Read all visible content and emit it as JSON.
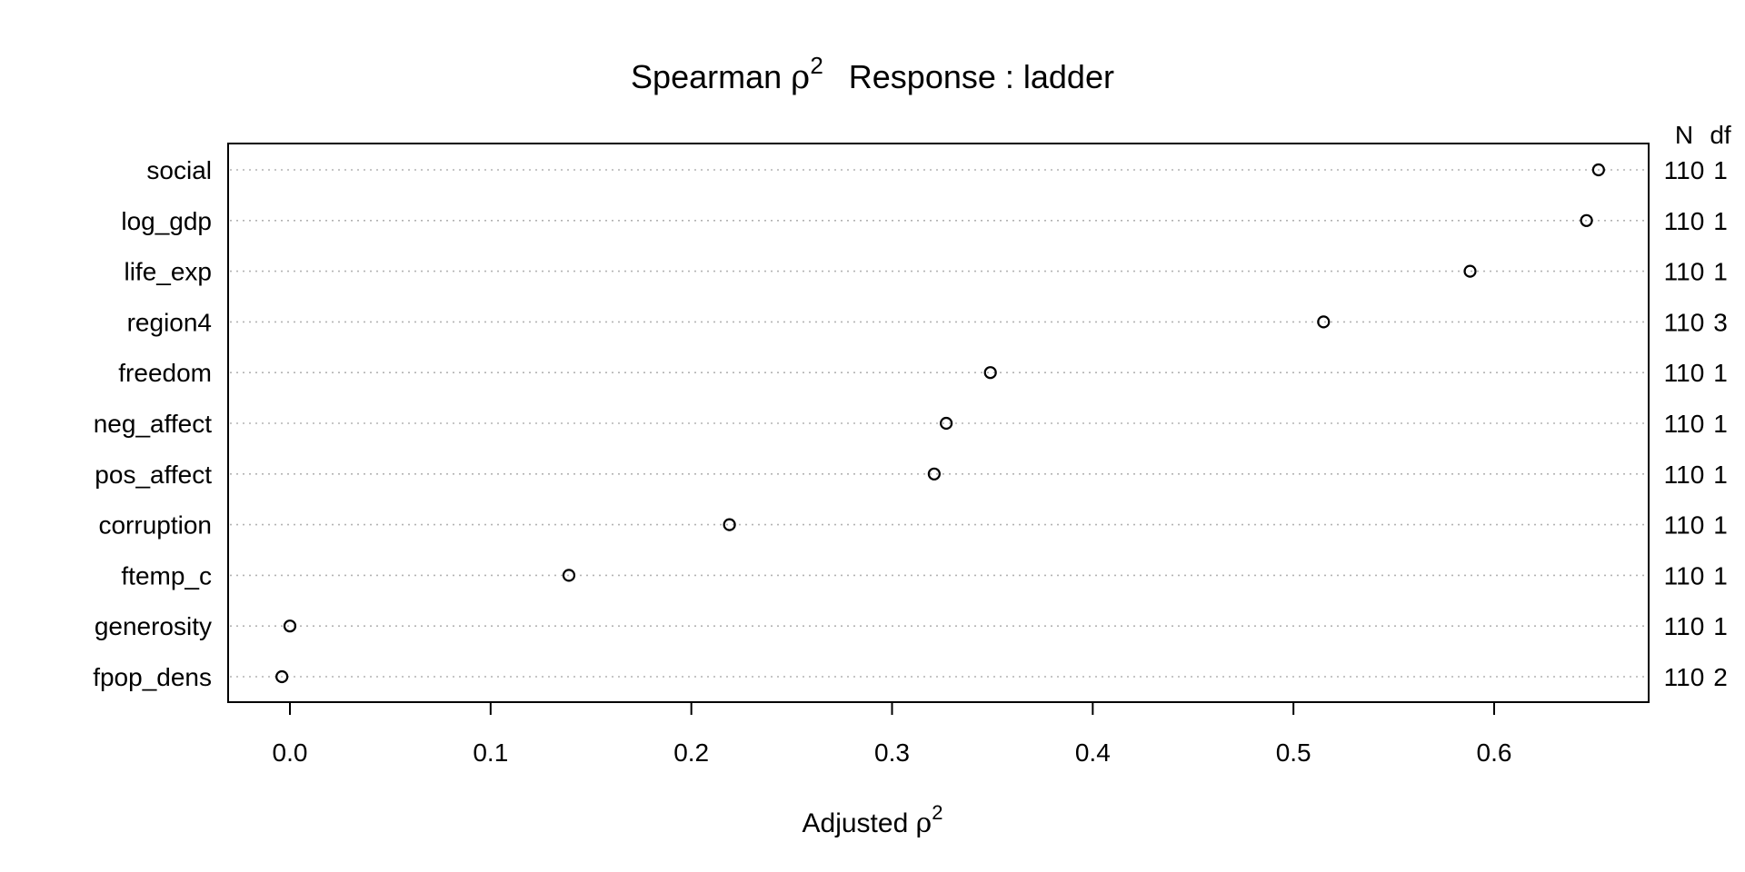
{
  "chart_data": {
    "type": "dot",
    "title_main": "Spearman ",
    "title_symbol": "ρ",
    "title_sup": "2",
    "title_response": "Response : ladder",
    "xlabel_main": "Adjusted ",
    "xlabel_symbol": "ρ",
    "xlabel_sup": "2",
    "xlim": [
      -0.03,
      0.68
    ],
    "xticks": [
      0.0,
      0.1,
      0.2,
      0.3,
      0.4,
      0.5,
      0.6
    ],
    "xtick_labels": [
      "0.0",
      "0.1",
      "0.2",
      "0.3",
      "0.4",
      "0.5",
      "0.6"
    ],
    "grid": "horizontal dotted",
    "right_header_n": "N",
    "right_header_df": "df",
    "categories": [
      "social",
      "log_gdp",
      "life_exp",
      "region4",
      "freedom",
      "neg_affect",
      "pos_affect",
      "corruption",
      "ftemp_c",
      "generosity",
      "fpop_dens"
    ],
    "values": [
      0.652,
      0.646,
      0.588,
      0.515,
      0.349,
      0.327,
      0.321,
      0.219,
      0.139,
      0.0,
      -0.004
    ],
    "n": [
      "110",
      "110",
      "110",
      "110",
      "110",
      "110",
      "110",
      "110",
      "110",
      "110",
      "110"
    ],
    "df": [
      "1",
      "1",
      "1",
      "3",
      "1",
      "1",
      "1",
      "1",
      "1",
      "1",
      "2"
    ]
  }
}
